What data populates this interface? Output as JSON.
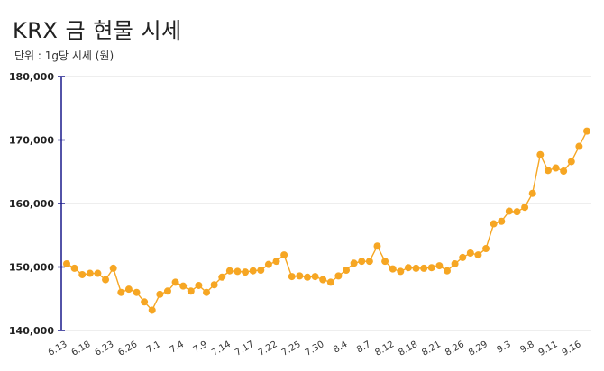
{
  "chart_data": {
    "type": "line",
    "title": "KRX 금 현물 시세",
    "subtitle": "단위 : 1g당 시세 (원)",
    "ylim": [
      140000,
      180000
    ],
    "yticks": [
      140000,
      150000,
      160000,
      170000,
      180000
    ],
    "ytick_labels": [
      "140,000",
      "150,000",
      "160,000",
      "170,000",
      "180,000"
    ],
    "xtick_labels": [
      "6.13",
      "6.18",
      "6.23",
      "6.26",
      "7.1",
      "7.4",
      "7.9",
      "7.14",
      "7.17",
      "7.22",
      "7.25",
      "7.30",
      "8.4",
      "8.7",
      "8.12",
      "8.18",
      "8.21",
      "8.26",
      "8.29",
      "9.3",
      "9.8",
      "9.11",
      "9.16"
    ],
    "grid": "horizontal",
    "line_color": "#f6a623",
    "values": [
      150500,
      149800,
      148800,
      149000,
      149000,
      148000,
      149800,
      146000,
      146500,
      146000,
      144500,
      143200,
      145700,
      146200,
      147600,
      147000,
      146200,
      147100,
      146000,
      147200,
      148400,
      149400,
      149300,
      149200,
      149400,
      149500,
      150400,
      150900,
      151900,
      148500,
      148600,
      148400,
      148500,
      148000,
      147600,
      148600,
      149500,
      150600,
      150900,
      150900,
      153300,
      150900,
      149700,
      149300,
      149900,
      149800,
      149800,
      149900,
      150200,
      149400,
      150500,
      151500,
      152200,
      151900,
      152900,
      156800,
      157200,
      158800,
      158700,
      159400,
      161600,
      167700,
      165200,
      165600,
      165100,
      166600,
      169000,
      171400
    ]
  }
}
